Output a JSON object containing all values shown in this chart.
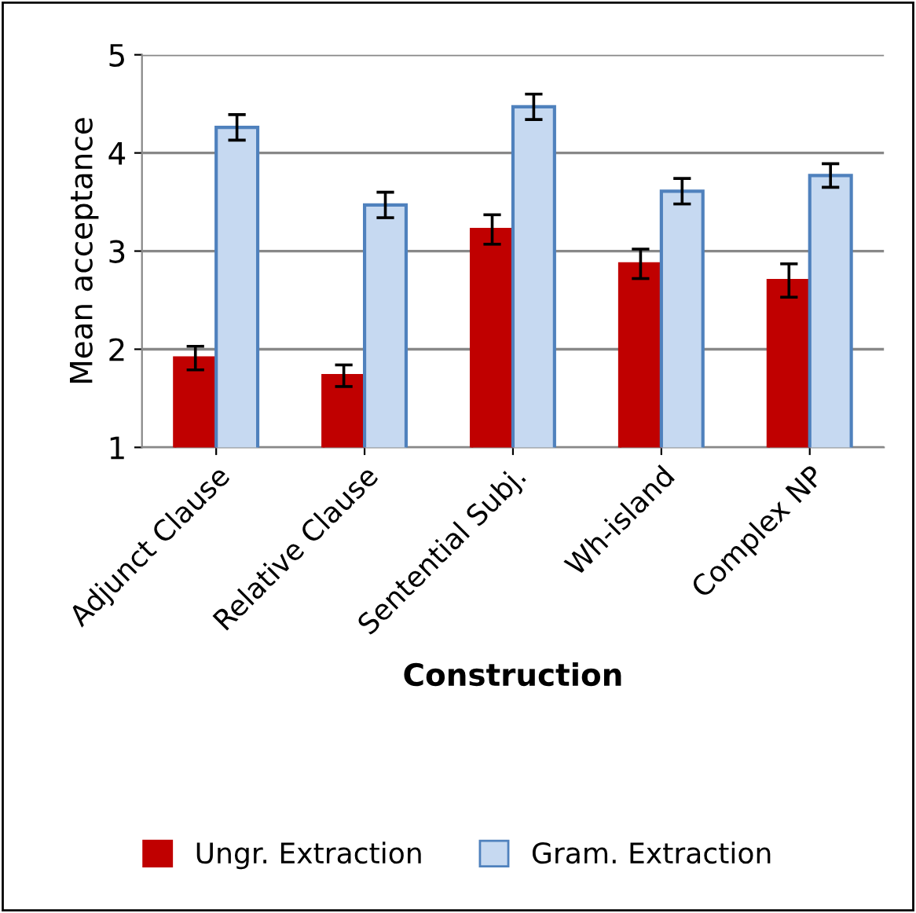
{
  "chart_data": {
    "type": "bar",
    "xlabel": "Construction",
    "ylabel": "Mean acceptance",
    "categories": [
      "Adjunct Clause",
      "Relative Clause",
      "Sentential Subj.",
      "Wh-island",
      "Complex NP"
    ],
    "series": [
      {
        "name": "Ungr. Extraction",
        "color": "#c00000",
        "values": [
          1.91,
          1.73,
          3.22,
          2.87,
          2.7
        ],
        "errors": [
          0.12,
          0.11,
          0.15,
          0.15,
          0.17
        ]
      },
      {
        "name": "Gram. Extraction",
        "color": "#c6d9f1",
        "values": [
          4.26,
          3.47,
          4.47,
          3.61,
          3.77
        ],
        "errors": [
          0.13,
          0.13,
          0.13,
          0.13,
          0.12
        ]
      }
    ],
    "ylim": [
      1,
      5
    ],
    "yticks": [
      1,
      2,
      3,
      4,
      5
    ],
    "grid": "y",
    "legend": "bottom"
  }
}
